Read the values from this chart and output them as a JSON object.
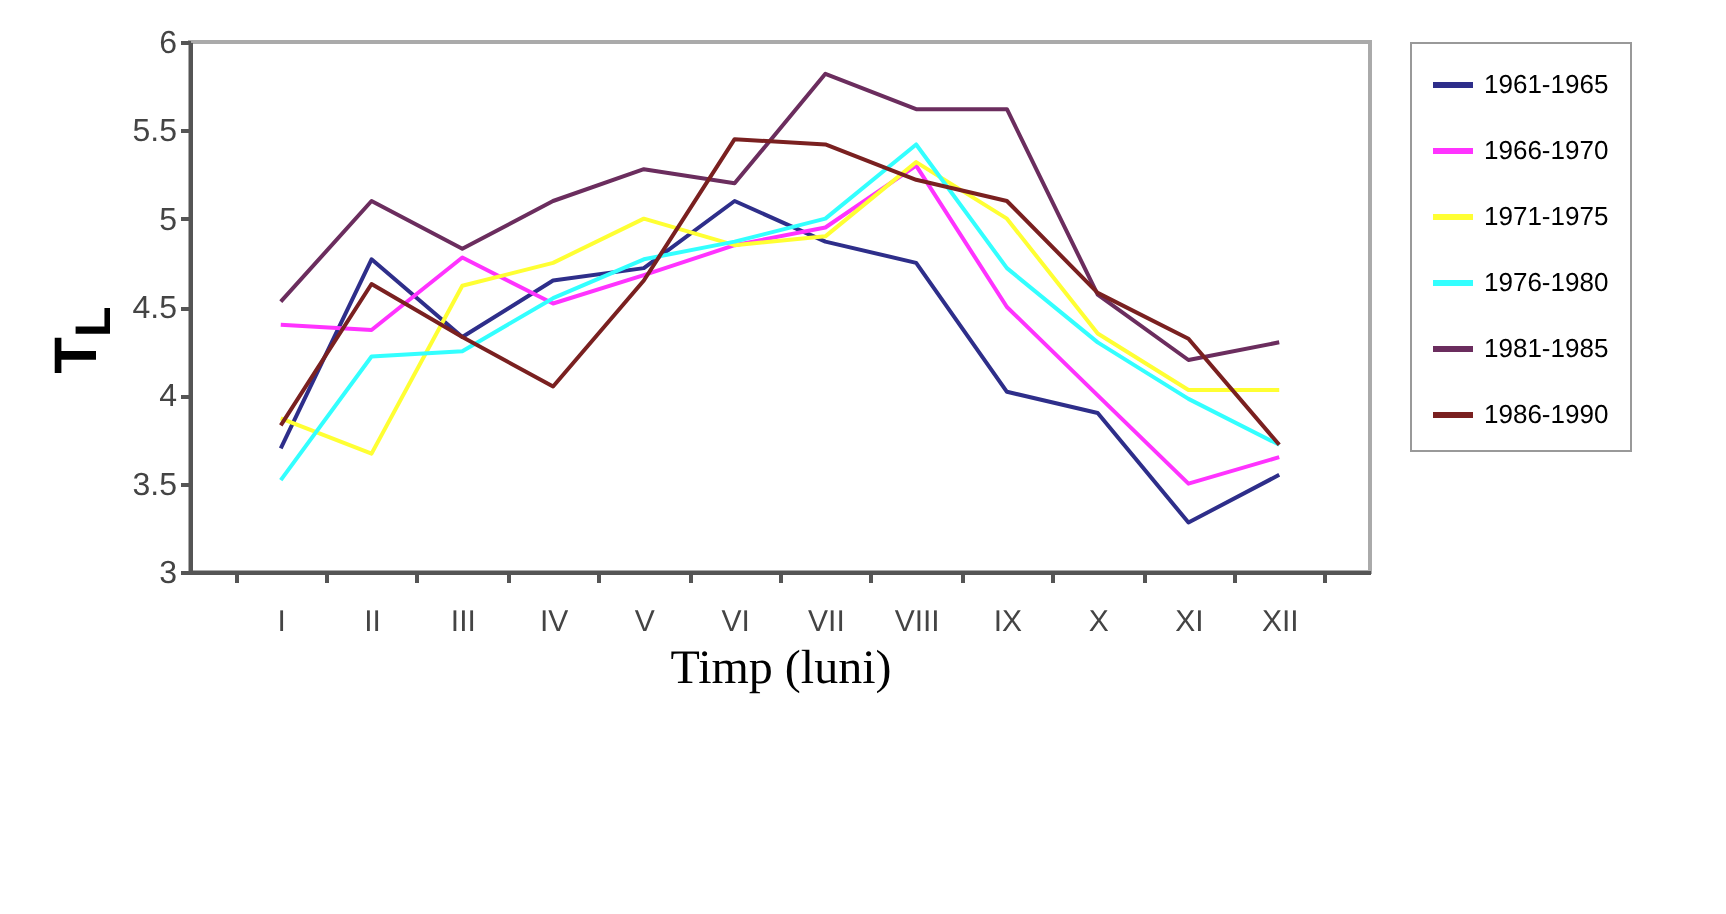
{
  "chart_data": {
    "type": "line",
    "xlabel": "Timp (luni)",
    "ylabel": "T$_{L}$",
    "categories": [
      "I",
      "II",
      "III",
      "IV",
      "V",
      "VI",
      "VII",
      "VIII",
      "IX",
      "X",
      "XI",
      "XII"
    ],
    "ylim": [
      3,
      6
    ],
    "yticks": [
      3,
      3.5,
      4,
      4.5,
      5,
      5.5,
      6
    ],
    "grid": false,
    "legend": "right",
    "marker": "none",
    "line_style": "solid",
    "series": [
      {
        "name": "1961-1965",
        "color": "#2e2e8a",
        "values": [
          3.7,
          4.77,
          4.33,
          4.65,
          4.72,
          5.1,
          4.87,
          4.75,
          4.02,
          3.9,
          3.28,
          3.55
        ]
      },
      {
        "name": "1966-1970",
        "color": "#ff33ff",
        "values": [
          4.4,
          4.37,
          4.78,
          4.52,
          4.68,
          4.85,
          4.95,
          5.3,
          4.5,
          4.0,
          3.5,
          3.65
        ]
      },
      {
        "name": "1971-1975",
        "color": "#ffff33",
        "values": [
          3.87,
          3.67,
          4.62,
          4.75,
          5.0,
          4.85,
          4.9,
          5.32,
          5.0,
          4.35,
          4.03,
          4.03
        ]
      },
      {
        "name": "1976-1980",
        "color": "#33ffff",
        "values": [
          3.52,
          4.22,
          4.25,
          4.55,
          4.77,
          4.87,
          5.0,
          5.42,
          4.72,
          4.3,
          3.98,
          3.72
        ]
      },
      {
        "name": "1981-1985",
        "color": "#6b2d5e",
        "values": [
          4.53,
          5.1,
          4.83,
          5.1,
          5.28,
          5.2,
          5.82,
          5.62,
          5.62,
          4.57,
          4.2,
          4.3
        ]
      },
      {
        "name": "1986-1990",
        "color": "#7a2020",
        "values": [
          3.83,
          4.63,
          4.33,
          4.05,
          4.65,
          5.45,
          5.42,
          5.22,
          5.1,
          4.58,
          4.32,
          3.72
        ]
      }
    ]
  }
}
